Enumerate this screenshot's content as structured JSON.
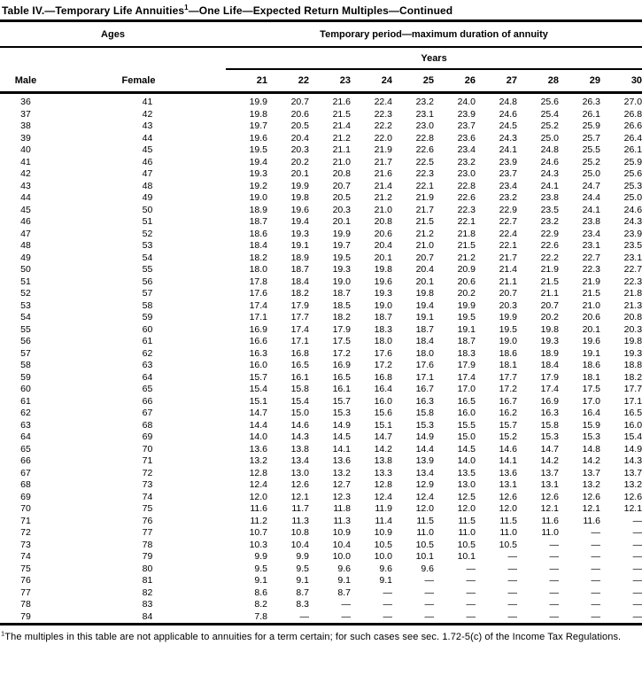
{
  "title": {
    "pre": "Table IV.—Temporary Life Annuities",
    "sup": "1",
    "post": "—One Life—Expected Return Multiples—Continued"
  },
  "table": {
    "ages_label": "Ages",
    "period_label": "Temporary period—maximum duration of annuity",
    "years_label": "Years",
    "male_label": "Male",
    "female_label": "Female",
    "year_columns": [
      "21",
      "22",
      "23",
      "24",
      "25",
      "26",
      "27",
      "28",
      "29",
      "30"
    ],
    "dash": "—",
    "rows": [
      {
        "male": "36",
        "female": "41",
        "values": [
          "19.9",
          "20.7",
          "21.6",
          "22.4",
          "23.2",
          "24.0",
          "24.8",
          "25.6",
          "26.3",
          "27.0"
        ]
      },
      {
        "male": "37",
        "female": "42",
        "values": [
          "19.8",
          "20.6",
          "21.5",
          "22.3",
          "23.1",
          "23.9",
          "24.6",
          "25.4",
          "26.1",
          "26.8"
        ]
      },
      {
        "male": "38",
        "female": "43",
        "values": [
          "19.7",
          "20.5",
          "21.4",
          "22.2",
          "23.0",
          "23.7",
          "24.5",
          "25.2",
          "25.9",
          "26.6"
        ]
      },
      {
        "male": "39",
        "female": "44",
        "values": [
          "19.6",
          "20.4",
          "21.2",
          "22.0",
          "22.8",
          "23.6",
          "24.3",
          "25.0",
          "25.7",
          "26.4"
        ]
      },
      {
        "male": "40",
        "female": "45",
        "values": [
          "19.5",
          "20.3",
          "21.1",
          "21.9",
          "22.6",
          "23.4",
          "24.1",
          "24.8",
          "25.5",
          "26.1"
        ]
      },
      {
        "male": "41",
        "female": "46",
        "values": [
          "19.4",
          "20.2",
          "21.0",
          "21.7",
          "22.5",
          "23.2",
          "23.9",
          "24.6",
          "25.2",
          "25.9"
        ]
      },
      {
        "male": "42",
        "female": "47",
        "values": [
          "19.3",
          "20.1",
          "20.8",
          "21.6",
          "22.3",
          "23.0",
          "23.7",
          "24.3",
          "25.0",
          "25.6"
        ]
      },
      {
        "male": "43",
        "female": "48",
        "values": [
          "19.2",
          "19.9",
          "20.7",
          "21.4",
          "22.1",
          "22.8",
          "23.4",
          "24.1",
          "24.7",
          "25.3"
        ]
      },
      {
        "male": "44",
        "female": "49",
        "values": [
          "19.0",
          "19.8",
          "20.5",
          "21.2",
          "21.9",
          "22.6",
          "23.2",
          "23.8",
          "24.4",
          "25.0"
        ]
      },
      {
        "male": "45",
        "female": "50",
        "values": [
          "18.9",
          "19.6",
          "20.3",
          "21.0",
          "21.7",
          "22.3",
          "22.9",
          "23.5",
          "24.1",
          "24.6"
        ]
      },
      {
        "male": "46",
        "female": "51",
        "values": [
          "18.7",
          "19.4",
          "20.1",
          "20.8",
          "21.5",
          "22.1",
          "22.7",
          "23.2",
          "23.8",
          "24.3"
        ]
      },
      {
        "male": "47",
        "female": "52",
        "values": [
          "18.6",
          "19.3",
          "19.9",
          "20.6",
          "21.2",
          "21.8",
          "22.4",
          "22.9",
          "23.4",
          "23.9"
        ]
      },
      {
        "male": "48",
        "female": "53",
        "values": [
          "18.4",
          "19.1",
          "19.7",
          "20.4",
          "21.0",
          "21.5",
          "22.1",
          "22.6",
          "23.1",
          "23.5"
        ]
      },
      {
        "male": "49",
        "female": "54",
        "values": [
          "18.2",
          "18.9",
          "19.5",
          "20.1",
          "20.7",
          "21.2",
          "21.7",
          "22.2",
          "22.7",
          "23.1"
        ]
      },
      {
        "male": "50",
        "female": "55",
        "values": [
          "18.0",
          "18.7",
          "19.3",
          "19.8",
          "20.4",
          "20.9",
          "21.4",
          "21.9",
          "22.3",
          "22.7"
        ]
      },
      {
        "male": "51",
        "female": "56",
        "values": [
          "17.8",
          "18.4",
          "19.0",
          "19.6",
          "20.1",
          "20.6",
          "21.1",
          "21.5",
          "21.9",
          "22.3"
        ]
      },
      {
        "male": "52",
        "female": "57",
        "values": [
          "17.6",
          "18.2",
          "18.7",
          "19.3",
          "19.8",
          "20.2",
          "20.7",
          "21.1",
          "21.5",
          "21.8"
        ]
      },
      {
        "male": "53",
        "female": "58",
        "values": [
          "17.4",
          "17.9",
          "18.5",
          "19.0",
          "19.4",
          "19.9",
          "20.3",
          "20.7",
          "21.0",
          "21.3"
        ]
      },
      {
        "male": "54",
        "female": "59",
        "values": [
          "17.1",
          "17.7",
          "18.2",
          "18.7",
          "19.1",
          "19.5",
          "19.9",
          "20.2",
          "20.6",
          "20.8"
        ]
      },
      {
        "male": "55",
        "female": "60",
        "values": [
          "16.9",
          "17.4",
          "17.9",
          "18.3",
          "18.7",
          "19.1",
          "19.5",
          "19.8",
          "20.1",
          "20.3"
        ]
      },
      {
        "male": "56",
        "female": "61",
        "values": [
          "16.6",
          "17.1",
          "17.5",
          "18.0",
          "18.4",
          "18.7",
          "19.0",
          "19.3",
          "19.6",
          "19.8"
        ]
      },
      {
        "male": "57",
        "female": "62",
        "values": [
          "16.3",
          "16.8",
          "17.2",
          "17.6",
          "18.0",
          "18.3",
          "18.6",
          "18.9",
          "19.1",
          "19.3"
        ]
      },
      {
        "male": "58",
        "female": "63",
        "values": [
          "16.0",
          "16.5",
          "16.9",
          "17.2",
          "17.6",
          "17.9",
          "18.1",
          "18.4",
          "18.6",
          "18.8"
        ]
      },
      {
        "male": "59",
        "female": "64",
        "values": [
          "15.7",
          "16.1",
          "16.5",
          "16.8",
          "17.1",
          "17.4",
          "17.7",
          "17.9",
          "18.1",
          "18.2"
        ]
      },
      {
        "male": "60",
        "female": "65",
        "values": [
          "15.4",
          "15.8",
          "16.1",
          "16.4",
          "16.7",
          "17.0",
          "17.2",
          "17.4",
          "17.5",
          "17.7"
        ]
      },
      {
        "male": "61",
        "female": "66",
        "values": [
          "15.1",
          "15.4",
          "15.7",
          "16.0",
          "16.3",
          "16.5",
          "16.7",
          "16.9",
          "17.0",
          "17.1"
        ]
      },
      {
        "male": "62",
        "female": "67",
        "values": [
          "14.7",
          "15.0",
          "15.3",
          "15.6",
          "15.8",
          "16.0",
          "16.2",
          "16.3",
          "16.4",
          "16.5"
        ]
      },
      {
        "male": "63",
        "female": "68",
        "values": [
          "14.4",
          "14.6",
          "14.9",
          "15.1",
          "15.3",
          "15.5",
          "15.7",
          "15.8",
          "15.9",
          "16.0"
        ]
      },
      {
        "male": "64",
        "female": "69",
        "values": [
          "14.0",
          "14.3",
          "14.5",
          "14.7",
          "14.9",
          "15.0",
          "15.2",
          "15.3",
          "15.3",
          "15.4"
        ]
      },
      {
        "male": "65",
        "female": "70",
        "values": [
          "13.6",
          "13.8",
          "14.1",
          "14.2",
          "14.4",
          "14.5",
          "14.6",
          "14.7",
          "14.8",
          "14.9"
        ]
      },
      {
        "male": "66",
        "female": "71",
        "values": [
          "13.2",
          "13.4",
          "13.6",
          "13.8",
          "13.9",
          "14.0",
          "14.1",
          "14.2",
          "14.2",
          "14.3"
        ]
      },
      {
        "male": "67",
        "female": "72",
        "values": [
          "12.8",
          "13.0",
          "13.2",
          "13.3",
          "13.4",
          "13.5",
          "13.6",
          "13.7",
          "13.7",
          "13.7"
        ]
      },
      {
        "male": "68",
        "female": "73",
        "values": [
          "12.4",
          "12.6",
          "12.7",
          "12.8",
          "12.9",
          "13.0",
          "13.1",
          "13.1",
          "13.2",
          "13.2"
        ]
      },
      {
        "male": "69",
        "female": "74",
        "values": [
          "12.0",
          "12.1",
          "12.3",
          "12.4",
          "12.4",
          "12.5",
          "12.6",
          "12.6",
          "12.6",
          "12.6"
        ]
      },
      {
        "male": "70",
        "female": "75",
        "values": [
          "11.6",
          "11.7",
          "11.8",
          "11.9",
          "12.0",
          "12.0",
          "12.0",
          "12.1",
          "12.1",
          "12.1"
        ]
      },
      {
        "male": "71",
        "female": "76",
        "values": [
          "11.2",
          "11.3",
          "11.3",
          "11.4",
          "11.5",
          "11.5",
          "11.5",
          "11.6",
          "11.6",
          "—"
        ]
      },
      {
        "male": "72",
        "female": "77",
        "values": [
          "10.7",
          "10.8",
          "10.9",
          "10.9",
          "11.0",
          "11.0",
          "11.0",
          "11.0",
          "—",
          "—"
        ]
      },
      {
        "male": "73",
        "female": "78",
        "values": [
          "10.3",
          "10.4",
          "10.4",
          "10.5",
          "10.5",
          "10.5",
          "10.5",
          "—",
          "—",
          "—"
        ]
      },
      {
        "male": "74",
        "female": "79",
        "values": [
          "9.9",
          "9.9",
          "10.0",
          "10.0",
          "10.1",
          "10.1",
          "—",
          "—",
          "—",
          "—"
        ]
      },
      {
        "male": "75",
        "female": "80",
        "values": [
          "9.5",
          "9.5",
          "9.6",
          "9.6",
          "9.6",
          "—",
          "—",
          "—",
          "—",
          "—"
        ]
      },
      {
        "male": "76",
        "female": "81",
        "values": [
          "9.1",
          "9.1",
          "9.1",
          "9.1",
          "—",
          "—",
          "—",
          "—",
          "—",
          "—"
        ]
      },
      {
        "male": "77",
        "female": "82",
        "values": [
          "8.6",
          "8.7",
          "8.7",
          "—",
          "—",
          "—",
          "—",
          "—",
          "—",
          "—"
        ]
      },
      {
        "male": "78",
        "female": "83",
        "values": [
          "8.2",
          "8.3",
          "—",
          "—",
          "—",
          "—",
          "—",
          "—",
          "—",
          "—"
        ]
      },
      {
        "male": "79",
        "female": "84",
        "values": [
          "7.8",
          "—",
          "—",
          "—",
          "—",
          "—",
          "—",
          "—",
          "—",
          "—"
        ]
      }
    ]
  },
  "footnote": {
    "sup": "1",
    "text": "The multiples in this table are not applicable to annuities for a term certain; for such cases see sec. 1.72-5(c) of the Income Tax Regulations."
  }
}
